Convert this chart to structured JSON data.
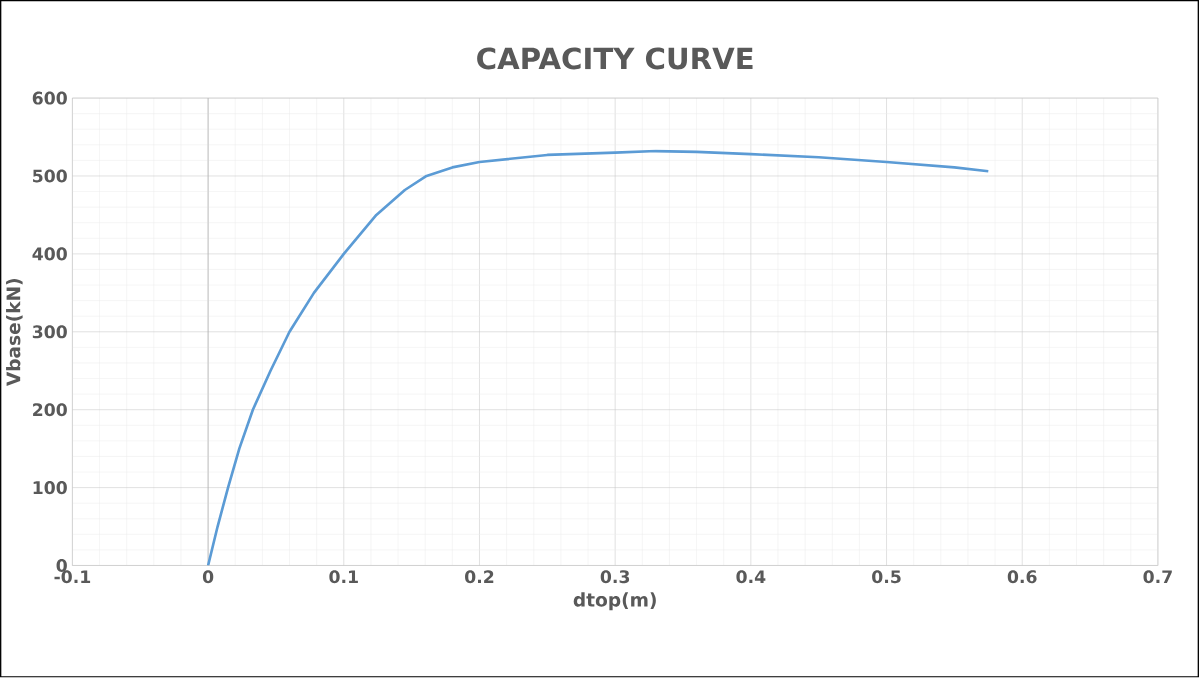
{
  "chart_data": {
    "type": "line",
    "title": "CAPACITY CURVE",
    "xlabel": "dtop(m)",
    "ylabel": "Vbase(kN)",
    "x": [
      0,
      0.007,
      0.0147,
      0.023,
      0.033,
      0.046,
      0.06,
      0.078,
      0.1,
      0.124,
      0.145,
      0.161,
      0.18,
      0.2,
      0.25,
      0.3,
      0.33,
      0.36,
      0.4,
      0.45,
      0.5,
      0.55,
      0.575
    ],
    "series": [
      {
        "color": "#5b9bd5",
        "values": [
          0,
          50,
          100,
          150,
          200,
          250,
          300,
          350,
          400,
          450,
          482,
          500,
          511,
          518,
          527,
          530,
          532,
          531,
          528,
          524,
          518,
          511,
          506
        ]
      }
    ],
    "xlim": [
      -0.1,
      0.7
    ],
    "ylim": [
      0,
      600
    ],
    "xticks": [
      -0.1,
      0,
      0.1,
      0.2,
      0.3,
      0.4,
      0.5,
      0.6,
      0.7
    ],
    "yticks": [
      0,
      100,
      200,
      300,
      400,
      500,
      600
    ],
    "grid": true,
    "marker": "none",
    "line_style": "solid"
  }
}
